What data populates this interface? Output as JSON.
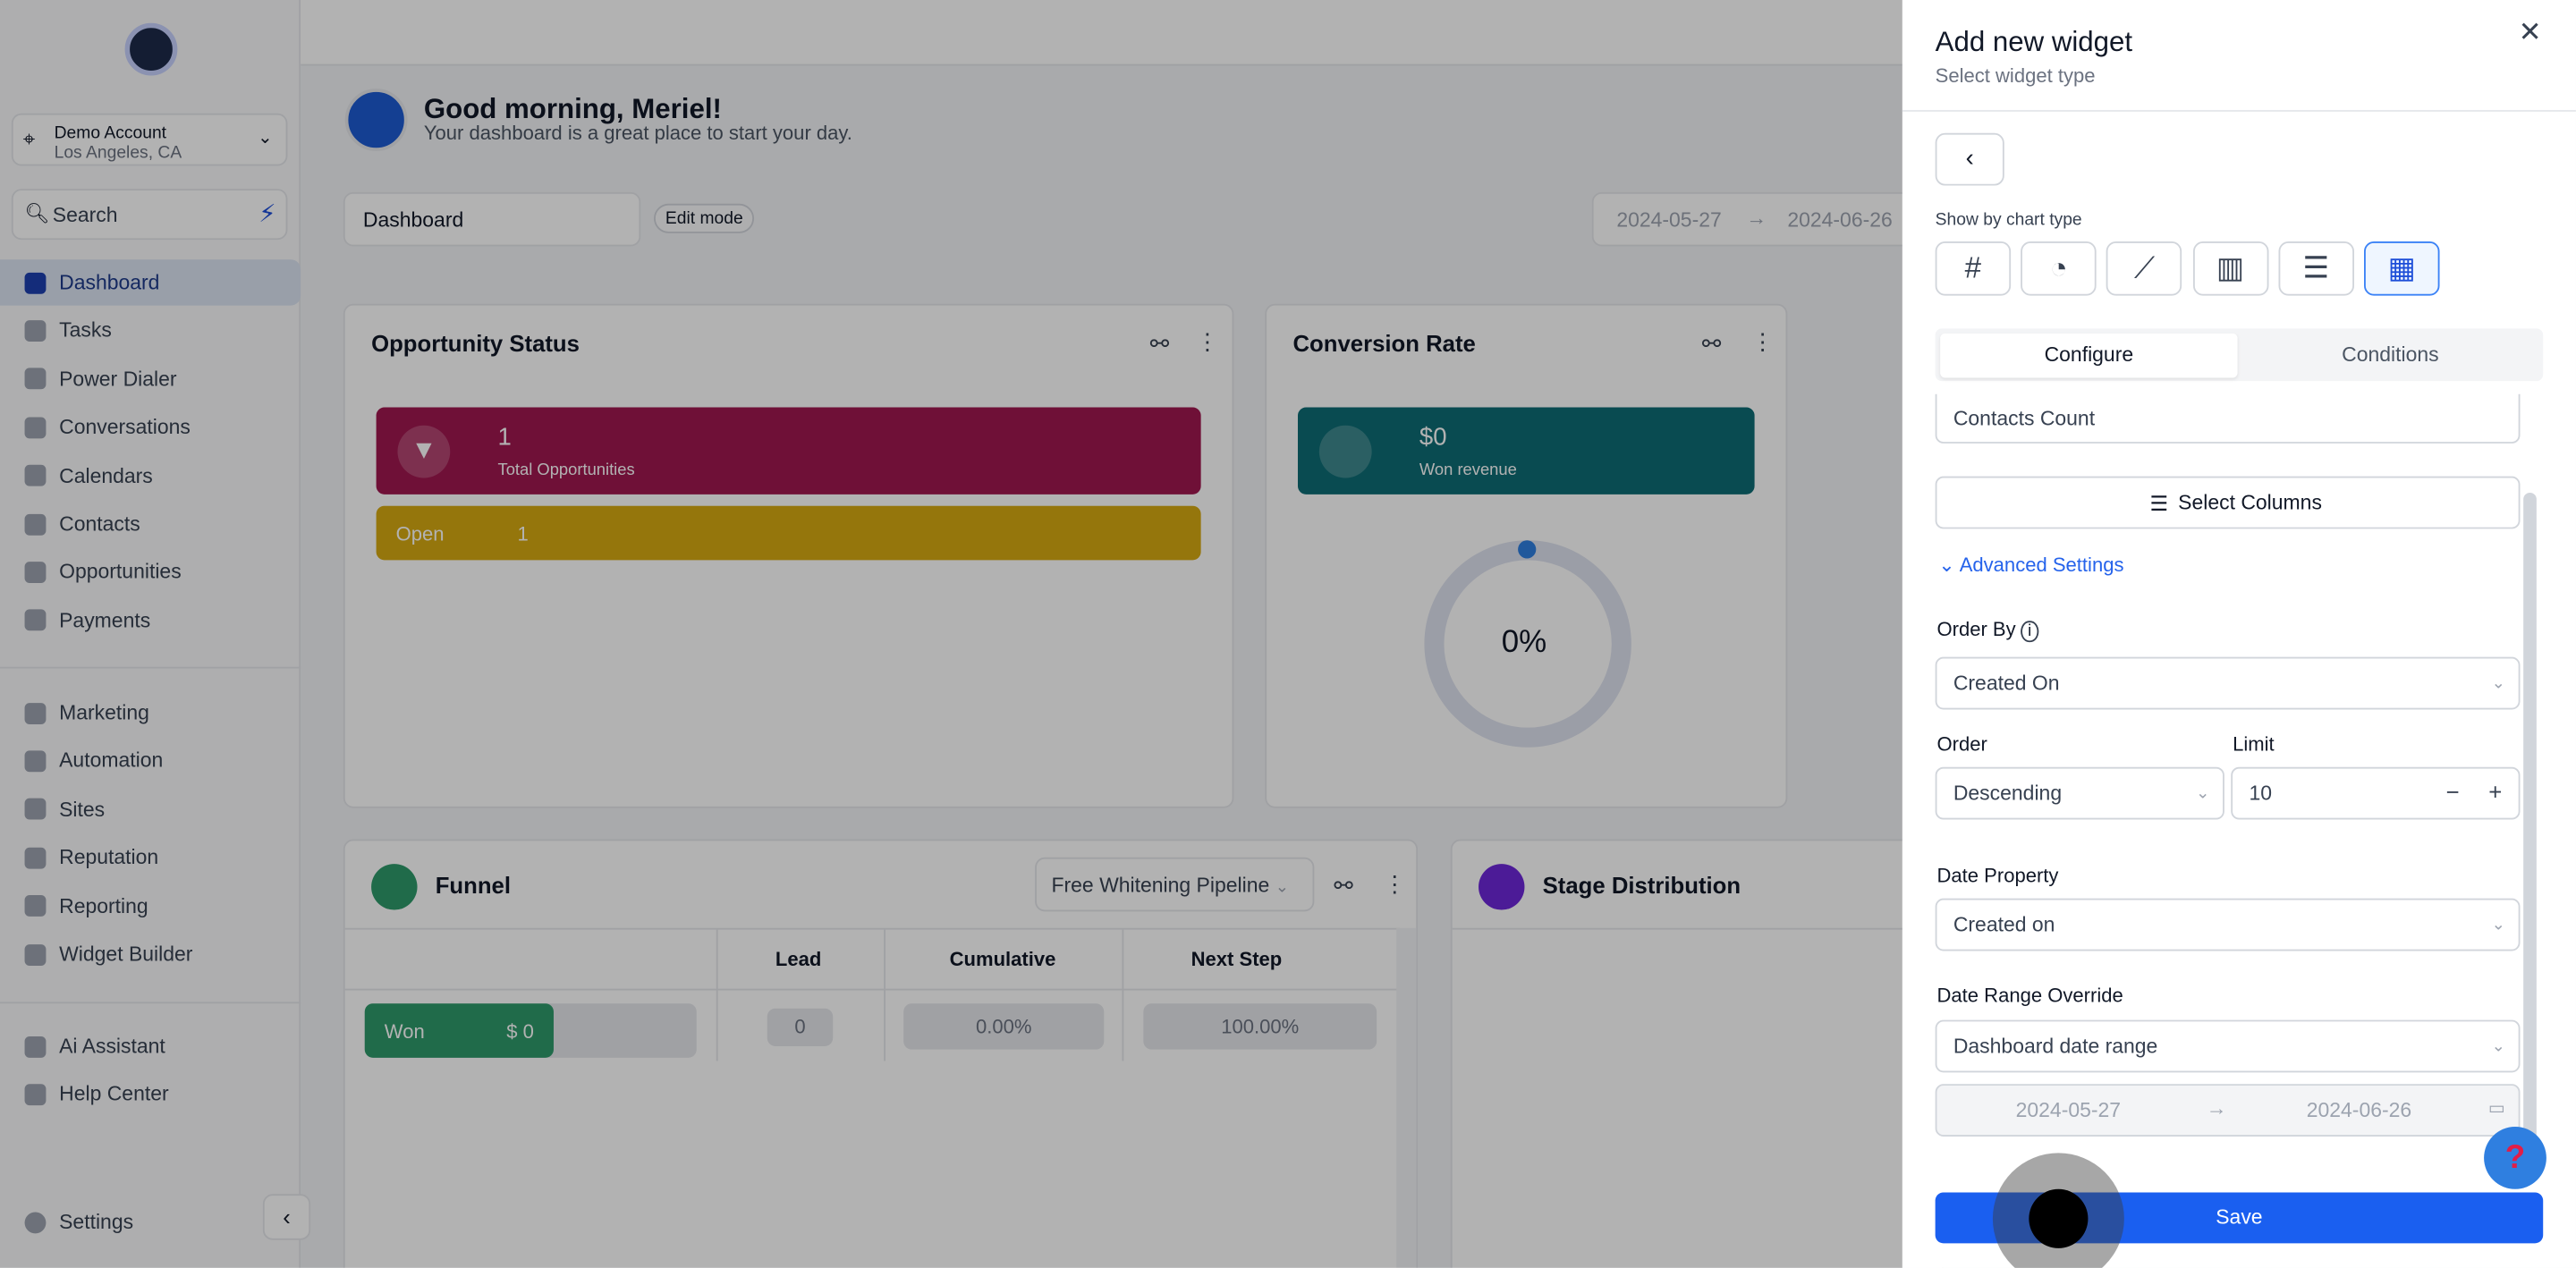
{
  "sidebar": {
    "account_name": "Demo Account",
    "account_location": "Los Angeles, CA",
    "search_placeholder": "Search",
    "nav_main": [
      {
        "label": "Dashboard",
        "active": true
      },
      {
        "label": "Tasks"
      },
      {
        "label": "Power Dialer"
      },
      {
        "label": "Conversations"
      },
      {
        "label": "Calendars"
      },
      {
        "label": "Contacts"
      },
      {
        "label": "Opportunities"
      },
      {
        "label": "Payments"
      }
    ],
    "nav_tools": [
      {
        "label": "Marketing"
      },
      {
        "label": "Automation"
      },
      {
        "label": "Sites"
      },
      {
        "label": "Reputation"
      },
      {
        "label": "Reporting"
      },
      {
        "label": "Widget Builder"
      }
    ],
    "nav_help": [
      {
        "label": "Ai Assistant"
      },
      {
        "label": "Help Center"
      }
    ],
    "settings_label": "Settings"
  },
  "header": {
    "greeting": "Good morning, Meriel!",
    "subtitle": "Your dashboard is a great place to start your day.",
    "dashboard_select": "Dashboard",
    "edit_mode": "Edit mode",
    "date_start": "2024-05-27",
    "date_end": "2024-06-26"
  },
  "opportunity_status": {
    "title": "Opportunity Status",
    "total_value": "1",
    "total_label": "Total Opportunities",
    "open_label": "Open",
    "open_value": "1"
  },
  "conversion_rate": {
    "title": "Conversion Rate",
    "value": "$0",
    "label": "Won revenue",
    "percent": "0%"
  },
  "funnel": {
    "title": "Funnel",
    "pipeline": "Free Whitening Pipeline",
    "columns": [
      "Lead",
      "Cumulative",
      "Next Step"
    ],
    "rows": [
      {
        "stage": "Won",
        "amount": "$ 0",
        "lead": "0",
        "cumulative": "0.00%",
        "next_step": "100.00%"
      }
    ]
  },
  "stage_distribution": {
    "title": "Stage Distribution"
  },
  "drawer": {
    "title": "Add new widget",
    "subtitle": "Select widget type",
    "chart_type_label": "Show by chart type",
    "chart_types": [
      {
        "icon": "hash-icon",
        "glyph": "#"
      },
      {
        "icon": "pie-chart-icon",
        "glyph": "◔"
      },
      {
        "icon": "line-chart-icon",
        "glyph": "⟋"
      },
      {
        "icon": "bar-chart-icon",
        "glyph": "▥"
      },
      {
        "icon": "horizontal-bar-chart-icon",
        "glyph": "☰"
      },
      {
        "icon": "table-icon",
        "glyph": "▦",
        "selected": true
      }
    ],
    "tabs": [
      "Configure",
      "Conditions"
    ],
    "metric_value": "Contacts Count",
    "select_columns": "Select Columns",
    "advanced_settings": "Advanced Settings",
    "order_by_label": "Order By",
    "order_by_value": "Created On",
    "order_label": "Order",
    "order_value": "Descending",
    "limit_label": "Limit",
    "limit_value": "10",
    "date_property_label": "Date Property",
    "date_property_value": "Created on",
    "date_range_label": "Date Range Override",
    "date_range_value": "Dashboard date range",
    "range_start": "2024-05-27",
    "range_end": "2024-06-26",
    "save": "Save"
  }
}
